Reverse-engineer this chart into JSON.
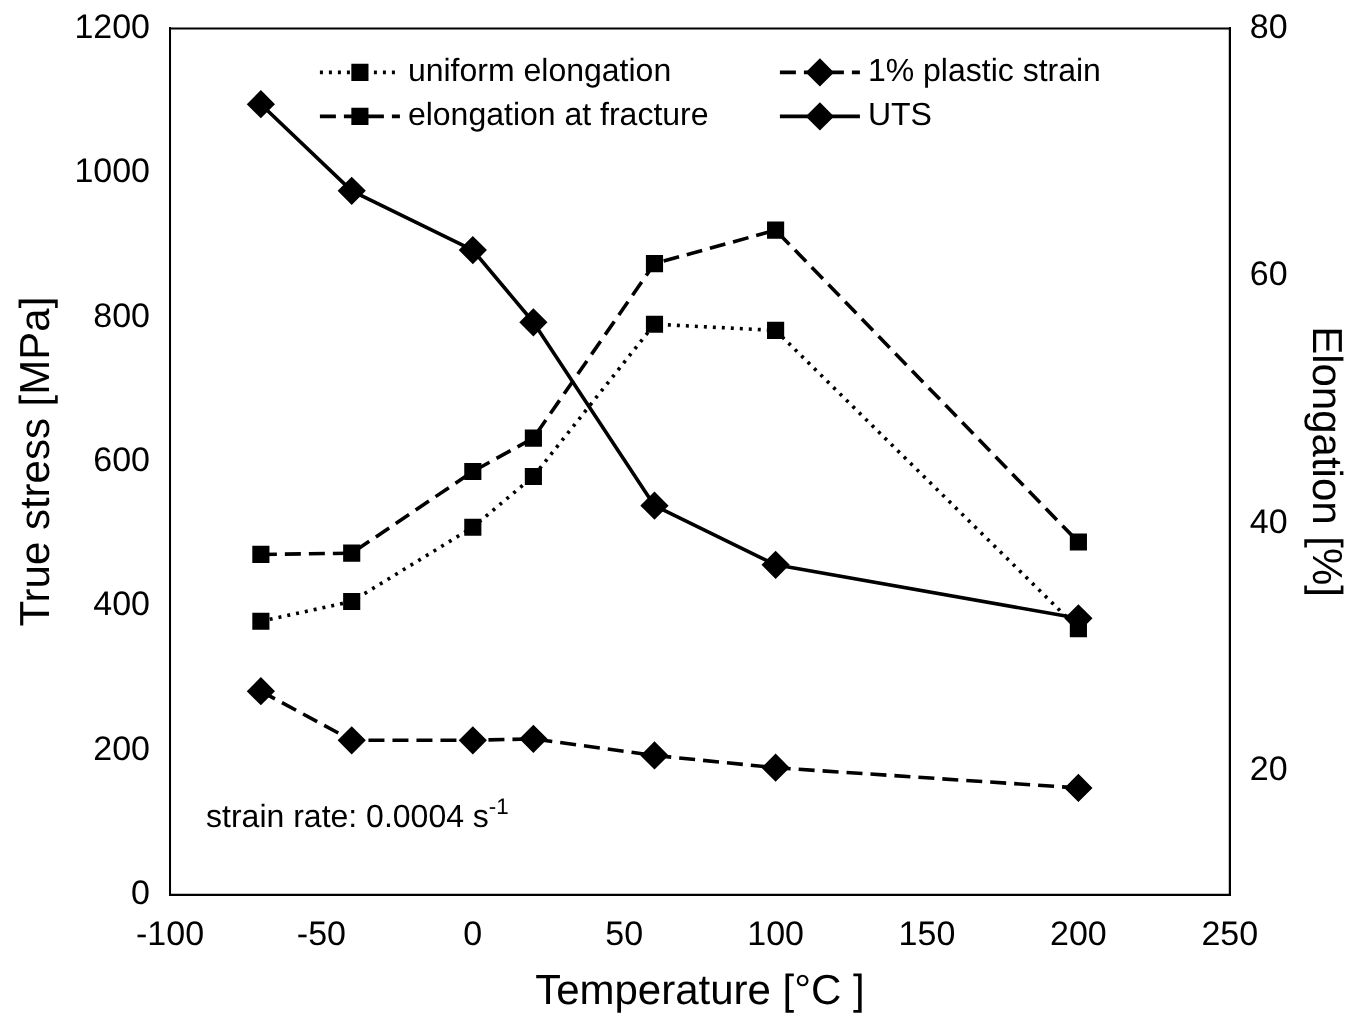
{
  "chart_data": {
    "type": "line",
    "xlabel": "Temperature [°C ]",
    "ylabel": "True stress [MPa]",
    "y2label": "Elongation [%]",
    "x": [
      -70,
      -40,
      0,
      20,
      60,
      100,
      200
    ],
    "series": [
      {
        "name": "uniform elongation",
        "color": "#000000",
        "axis": "y2",
        "marker": "square",
        "line_style": "dotted",
        "values": [
          32.1,
          33.7,
          39.7,
          43.8,
          56.1,
          55.6,
          31.5
        ]
      },
      {
        "name": "1% plastic strain",
        "color": "#000000",
        "axis": "y",
        "marker": "diamond",
        "line_style": "dashed",
        "values": [
          282,
          214,
          214,
          216,
          193,
          176,
          148
        ]
      },
      {
        "name": "elongation at fracture",
        "color": "#000000",
        "axis": "y2",
        "marker": "square",
        "line_style": "dashed",
        "values": [
          37.5,
          37.6,
          44.2,
          46.9,
          61.0,
          63.7,
          38.5
        ]
      },
      {
        "name": "UTS",
        "color": "#000000",
        "axis": "y",
        "marker": "diamond",
        "line_style": "solid",
        "values": [
          1095,
          975,
          893,
          793,
          539,
          457,
          383
        ]
      }
    ],
    "xlim": [
      -100,
      250
    ],
    "xticks": [
      -100,
      -50,
      0,
      50,
      100,
      150,
      200,
      250
    ],
    "ylim": [
      0,
      1200
    ],
    "yticks": [
      0,
      200,
      400,
      600,
      800,
      1000,
      1200
    ],
    "y2lim": [
      10,
      80
    ],
    "y2ticks": [
      20,
      40,
      60,
      80
    ],
    "grid": false,
    "legend": "top",
    "annotations": [
      "strain rate: 0.0004 s$^{-1}$"
    ]
  }
}
